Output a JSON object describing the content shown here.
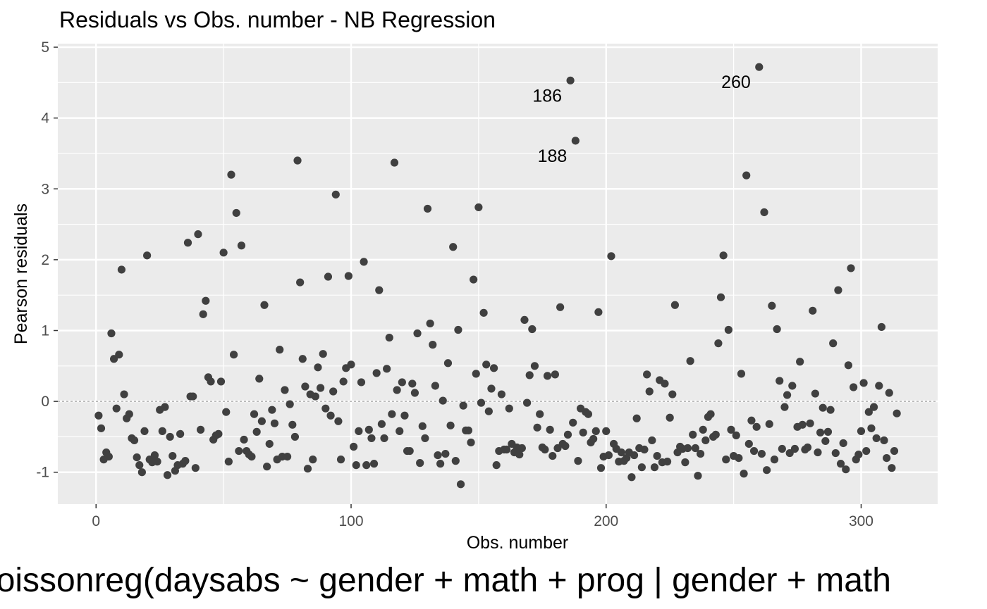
{
  "chart_data": {
    "type": "scatter",
    "title": "Residuals vs Obs. number - NB Regression",
    "xlabel": "Obs. number",
    "ylabel": "Pearson residuals",
    "caption": "poissonreg(daysabs ~ gender + math + prog | gender + math",
    "xlim": [
      -15,
      330
    ],
    "ylim": [
      -1.45,
      5.05
    ],
    "x_ticks": [
      0,
      100,
      200,
      300
    ],
    "y_ticks": [
      -1,
      0,
      1,
      2,
      3,
      4,
      5
    ],
    "reference_line": {
      "y": 0,
      "style": "dashed"
    },
    "grid": true,
    "point_color": "#404040",
    "panel_background": "#ebebeb",
    "annotations": [
      {
        "label": "186",
        "x": 186,
        "y": 4.53
      },
      {
        "label": "188",
        "x": 188,
        "y": 3.68
      },
      {
        "label": "260",
        "x": 260,
        "y": 4.72
      }
    ],
    "points": [
      [
        1,
        -0.2
      ],
      [
        2,
        -0.38
      ],
      [
        3,
        -0.82
      ],
      [
        4,
        -0.72
      ],
      [
        5,
        -0.78
      ],
      [
        6,
        0.96
      ],
      [
        7,
        0.6
      ],
      [
        8,
        -0.1
      ],
      [
        9,
        0.66
      ],
      [
        10,
        1.86
      ],
      [
        11,
        0.1
      ],
      [
        12,
        -0.24
      ],
      [
        13,
        -0.18
      ],
      [
        14,
        -0.52
      ],
      [
        15,
        -0.55
      ],
      [
        16,
        -0.79
      ],
      [
        17,
        -0.9
      ],
      [
        18,
        -1.0
      ],
      [
        19,
        -0.42
      ],
      [
        20,
        2.06
      ],
      [
        21,
        -0.82
      ],
      [
        22,
        -0.86
      ],
      [
        23,
        -0.76
      ],
      [
        24,
        -0.85
      ],
      [
        25,
        -0.12
      ],
      [
        26,
        -0.42
      ],
      [
        27,
        -0.08
      ],
      [
        28,
        -1.04
      ],
      [
        29,
        -0.5
      ],
      [
        30,
        -0.77
      ],
      [
        31,
        -0.98
      ],
      [
        32,
        -0.9
      ],
      [
        33,
        -0.46
      ],
      [
        34,
        -0.88
      ],
      [
        35,
        -0.84
      ],
      [
        36,
        2.24
      ],
      [
        37,
        0.07
      ],
      [
        38,
        0.07
      ],
      [
        39,
        -0.94
      ],
      [
        40,
        2.36
      ],
      [
        41,
        -0.4
      ],
      [
        42,
        1.23
      ],
      [
        43,
        1.42
      ],
      [
        44,
        0.34
      ],
      [
        45,
        0.28
      ],
      [
        46,
        -0.54
      ],
      [
        47,
        -0.48
      ],
      [
        48,
        -0.46
      ],
      [
        49,
        0.28
      ],
      [
        50,
        2.1
      ],
      [
        51,
        -0.15
      ],
      [
        52,
        -0.85
      ],
      [
        53,
        3.2
      ],
      [
        54,
        0.66
      ],
      [
        55,
        2.66
      ],
      [
        56,
        -0.7
      ],
      [
        57,
        2.2
      ],
      [
        58,
        -0.54
      ],
      [
        59,
        -0.7
      ],
      [
        60,
        -0.75
      ],
      [
        61,
        -0.78
      ],
      [
        62,
        -0.18
      ],
      [
        63,
        -0.43
      ],
      [
        64,
        0.32
      ],
      [
        65,
        -0.28
      ],
      [
        66,
        1.36
      ],
      [
        67,
        -0.92
      ],
      [
        68,
        -0.6
      ],
      [
        69,
        -0.12
      ],
      [
        70,
        -0.31
      ],
      [
        71,
        -0.82
      ],
      [
        72,
        0.73
      ],
      [
        73,
        -0.78
      ],
      [
        74,
        0.16
      ],
      [
        75,
        -0.78
      ],
      [
        76,
        -0.04
      ],
      [
        77,
        -0.33
      ],
      [
        78,
        -0.5
      ],
      [
        79,
        3.4
      ],
      [
        80,
        1.68
      ],
      [
        81,
        0.6
      ],
      [
        82,
        0.21
      ],
      [
        83,
        -0.95
      ],
      [
        84,
        0.1
      ],
      [
        85,
        -0.82
      ],
      [
        86,
        0.07
      ],
      [
        87,
        0.48
      ],
      [
        88,
        0.19
      ],
      [
        89,
        0.67
      ],
      [
        90,
        -0.1
      ],
      [
        91,
        1.76
      ],
      [
        92,
        -0.2
      ],
      [
        93,
        0.14
      ],
      [
        94,
        2.92
      ],
      [
        95,
        -0.28
      ],
      [
        96,
        -0.82
      ],
      [
        97,
        0.28
      ],
      [
        98,
        0.47
      ],
      [
        99,
        1.77
      ],
      [
        100,
        0.52
      ],
      [
        101,
        -0.64
      ],
      [
        102,
        -0.9
      ],
      [
        103,
        -0.42
      ],
      [
        104,
        0.27
      ],
      [
        105,
        1.97
      ],
      [
        106,
        -0.9
      ],
      [
        107,
        -0.4
      ],
      [
        108,
        -0.52
      ],
      [
        109,
        -0.88
      ],
      [
        110,
        0.4
      ],
      [
        111,
        1.57
      ],
      [
        112,
        -0.32
      ],
      [
        113,
        -0.52
      ],
      [
        114,
        0.46
      ],
      [
        115,
        0.9
      ],
      [
        116,
        -0.18
      ],
      [
        117,
        3.37
      ],
      [
        118,
        0.16
      ],
      [
        119,
        -0.42
      ],
      [
        120,
        0.27
      ],
      [
        121,
        -0.2
      ],
      [
        122,
        -0.7
      ],
      [
        123,
        -0.7
      ],
      [
        124,
        0.25
      ],
      [
        125,
        0.12
      ],
      [
        126,
        0.96
      ],
      [
        127,
        -0.87
      ],
      [
        128,
        -0.35
      ],
      [
        129,
        -0.52
      ],
      [
        130,
        2.72
      ],
      [
        131,
        1.1
      ],
      [
        132,
        0.8
      ],
      [
        133,
        0.22
      ],
      [
        134,
        -0.76
      ],
      [
        135,
        -0.88
      ],
      [
        136,
        0.01
      ],
      [
        137,
        -0.74
      ],
      [
        138,
        0.54
      ],
      [
        139,
        -0.34
      ],
      [
        140,
        2.18
      ],
      [
        141,
        -0.84
      ],
      [
        142,
        1.01
      ],
      [
        143,
        -1.17
      ],
      [
        144,
        -0.06
      ],
      [
        145,
        -0.41
      ],
      [
        146,
        -0.41
      ],
      [
        147,
        -0.58
      ],
      [
        148,
        1.72
      ],
      [
        149,
        0.39
      ],
      [
        150,
        2.74
      ],
      [
        151,
        -0.02
      ],
      [
        152,
        1.25
      ],
      [
        153,
        0.52
      ],
      [
        154,
        -0.14
      ],
      [
        155,
        0.18
      ],
      [
        156,
        0.47
      ],
      [
        157,
        -0.9
      ],
      [
        158,
        -0.7
      ],
      [
        159,
        0.1
      ],
      [
        160,
        -0.68
      ],
      [
        161,
        -0.68
      ],
      [
        162,
        -0.1
      ],
      [
        163,
        -0.6
      ],
      [
        164,
        -0.72
      ],
      [
        165,
        -0.65
      ],
      [
        166,
        -0.75
      ],
      [
        167,
        -0.66
      ],
      [
        168,
        1.15
      ],
      [
        169,
        -0.02
      ],
      [
        170,
        0.37
      ],
      [
        171,
        1.02
      ],
      [
        172,
        0.5
      ],
      [
        173,
        -0.37
      ],
      [
        174,
        -0.18
      ],
      [
        175,
        -0.65
      ],
      [
        176,
        -0.68
      ],
      [
        177,
        0.36
      ],
      [
        178,
        -0.4
      ],
      [
        179,
        -0.77
      ],
      [
        180,
        0.38
      ],
      [
        181,
        -0.66
      ],
      [
        182,
        1.33
      ],
      [
        183,
        -0.6
      ],
      [
        184,
        -0.63
      ],
      [
        185,
        -0.47
      ],
      [
        186,
        4.53
      ],
      [
        187,
        -0.3
      ],
      [
        188,
        3.68
      ],
      [
        189,
        -0.84
      ],
      [
        190,
        -0.1
      ],
      [
        191,
        -0.44
      ],
      [
        192,
        -0.15
      ],
      [
        193,
        -0.18
      ],
      [
        194,
        -0.58
      ],
      [
        195,
        -0.53
      ],
      [
        196,
        -0.42
      ],
      [
        197,
        1.26
      ],
      [
        198,
        -0.94
      ],
      [
        199,
        -0.78
      ],
      [
        200,
        -0.42
      ],
      [
        201,
        -0.76
      ],
      [
        202,
        2.05
      ],
      [
        203,
        -0.6
      ],
      [
        204,
        -0.67
      ],
      [
        205,
        -0.85
      ],
      [
        206,
        -0.72
      ],
      [
        207,
        -0.84
      ],
      [
        208,
        -0.8
      ],
      [
        209,
        -0.72
      ],
      [
        210,
        -1.07
      ],
      [
        211,
        -0.76
      ],
      [
        212,
        -0.24
      ],
      [
        213,
        -0.66
      ],
      [
        214,
        -0.93
      ],
      [
        215,
        -0.68
      ],
      [
        216,
        0.38
      ],
      [
        217,
        0.14
      ],
      [
        218,
        -0.55
      ],
      [
        219,
        -0.93
      ],
      [
        220,
        -0.77
      ],
      [
        221,
        0.3
      ],
      [
        222,
        -0.86
      ],
      [
        223,
        0.25
      ],
      [
        224,
        -0.85
      ],
      [
        225,
        -0.23
      ],
      [
        226,
        0.1
      ],
      [
        227,
        1.36
      ],
      [
        228,
        -0.72
      ],
      [
        229,
        -0.64
      ],
      [
        230,
        -0.67
      ],
      [
        231,
        -0.86
      ],
      [
        232,
        -0.66
      ],
      [
        233,
        0.57
      ],
      [
        234,
        -0.47
      ],
      [
        235,
        -0.66
      ],
      [
        236,
        -1.05
      ],
      [
        237,
        -0.74
      ],
      [
        238,
        -0.4
      ],
      [
        239,
        -0.55
      ],
      [
        240,
        -0.22
      ],
      [
        241,
        -0.18
      ],
      [
        242,
        -0.5
      ],
      [
        243,
        -0.47
      ],
      [
        244,
        0.82
      ],
      [
        245,
        1.47
      ],
      [
        246,
        2.06
      ],
      [
        247,
        -0.82
      ],
      [
        248,
        1.01
      ],
      [
        249,
        -0.4
      ],
      [
        250,
        -0.77
      ],
      [
        251,
        -0.48
      ],
      [
        252,
        -0.8
      ],
      [
        253,
        0.39
      ],
      [
        254,
        -1.02
      ],
      [
        255,
        3.19
      ],
      [
        256,
        -0.6
      ],
      [
        257,
        -0.27
      ],
      [
        258,
        -0.7
      ],
      [
        259,
        -0.36
      ],
      [
        260,
        4.72
      ],
      [
        261,
        -0.74
      ],
      [
        262,
        2.67
      ],
      [
        263,
        -0.97
      ],
      [
        264,
        -0.32
      ],
      [
        265,
        1.35
      ],
      [
        266,
        -0.82
      ],
      [
        267,
        1.02
      ],
      [
        268,
        0.29
      ],
      [
        269,
        -0.67
      ],
      [
        270,
        -0.08
      ],
      [
        271,
        0.09
      ],
      [
        272,
        -0.73
      ],
      [
        273,
        0.22
      ],
      [
        274,
        -0.67
      ],
      [
        275,
        -0.36
      ],
      [
        276,
        0.56
      ],
      [
        277,
        -0.33
      ],
      [
        278,
        -0.68
      ],
      [
        279,
        -0.65
      ],
      [
        280,
        -0.31
      ],
      [
        281,
        1.28
      ],
      [
        282,
        0.11
      ],
      [
        283,
        -0.72
      ],
      [
        284,
        -0.44
      ],
      [
        285,
        -0.09
      ],
      [
        286,
        -0.56
      ],
      [
        287,
        -0.43
      ],
      [
        288,
        -0.12
      ],
      [
        289,
        0.82
      ],
      [
        290,
        -0.73
      ],
      [
        291,
        1.57
      ],
      [
        292,
        -0.88
      ],
      [
        293,
        -0.59
      ],
      [
        294,
        -0.96
      ],
      [
        295,
        0.51
      ],
      [
        296,
        1.88
      ],
      [
        297,
        0.2
      ],
      [
        298,
        -0.82
      ],
      [
        299,
        -0.75
      ],
      [
        300,
        -0.42
      ],
      [
        301,
        0.26
      ],
      [
        302,
        -0.7
      ],
      [
        303,
        -0.15
      ],
      [
        304,
        -0.38
      ],
      [
        305,
        -0.08
      ],
      [
        306,
        -0.52
      ],
      [
        307,
        0.22
      ],
      [
        308,
        1.05
      ],
      [
        309,
        -0.55
      ],
      [
        310,
        -0.8
      ],
      [
        311,
        0.12
      ],
      [
        312,
        -0.94
      ],
      [
        313,
        -0.7
      ],
      [
        314,
        -0.17
      ]
    ]
  }
}
